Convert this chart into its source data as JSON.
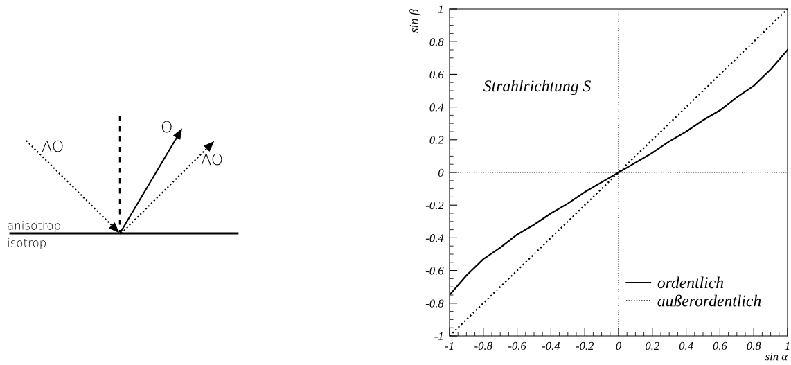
{
  "chart_data": [
    {
      "type": "other",
      "annotations": [
        "AO",
        "O",
        "AO",
        "anisotrop",
        "isotrop"
      ]
    },
    {
      "type": "line",
      "xlabel": "sin α",
      "ylabel": "sin β",
      "annotations": [
        "Strahlrichtung S"
      ],
      "x": [
        -1,
        -0.95,
        -0.9,
        -0.8,
        -0.7,
        -0.6,
        -0.5,
        -0.4,
        -0.3,
        -0.2,
        -0.1,
        0,
        0.1,
        0.2,
        0.3,
        0.4,
        0.5,
        0.6,
        0.7,
        0.8,
        0.9,
        0.95,
        1
      ],
      "series": [
        {
          "name": "ordentlich",
          "color": "#000000",
          "line_style": "solid",
          "values": [
            -0.75,
            -0.69,
            -0.63,
            -0.53,
            -0.46,
            -0.38,
            -0.32,
            -0.25,
            -0.19,
            -0.12,
            -0.06,
            0,
            0.06,
            0.12,
            0.19,
            0.25,
            0.32,
            0.38,
            0.46,
            0.53,
            0.63,
            0.69,
            0.75
          ]
        },
        {
          "name": "außerordentlich",
          "color": "#000000",
          "line_style": "dotted",
          "x": [
            -1,
            1
          ],
          "values": [
            -1,
            1
          ]
        }
      ],
      "xlim": [
        -1,
        1
      ],
      "ylim": [
        -1,
        1
      ],
      "xticks": [
        -1,
        -0.8,
        -0.6,
        -0.4,
        -0.2,
        0,
        0.2,
        0.4,
        0.6,
        0.8,
        1
      ],
      "yticks": [
        -1,
        -0.8,
        -0.6,
        -0.4,
        -0.2,
        0,
        0.2,
        0.4,
        0.6,
        0.8,
        1
      ],
      "ref_lines": [
        {
          "axis": "x",
          "value": 0,
          "line_style": "dotted",
          "color": "#000000"
        },
        {
          "axis": "y",
          "value": 0,
          "line_style": "dotted",
          "color": "#000000"
        }
      ],
      "grid": false,
      "legend": "bottom right"
    }
  ]
}
